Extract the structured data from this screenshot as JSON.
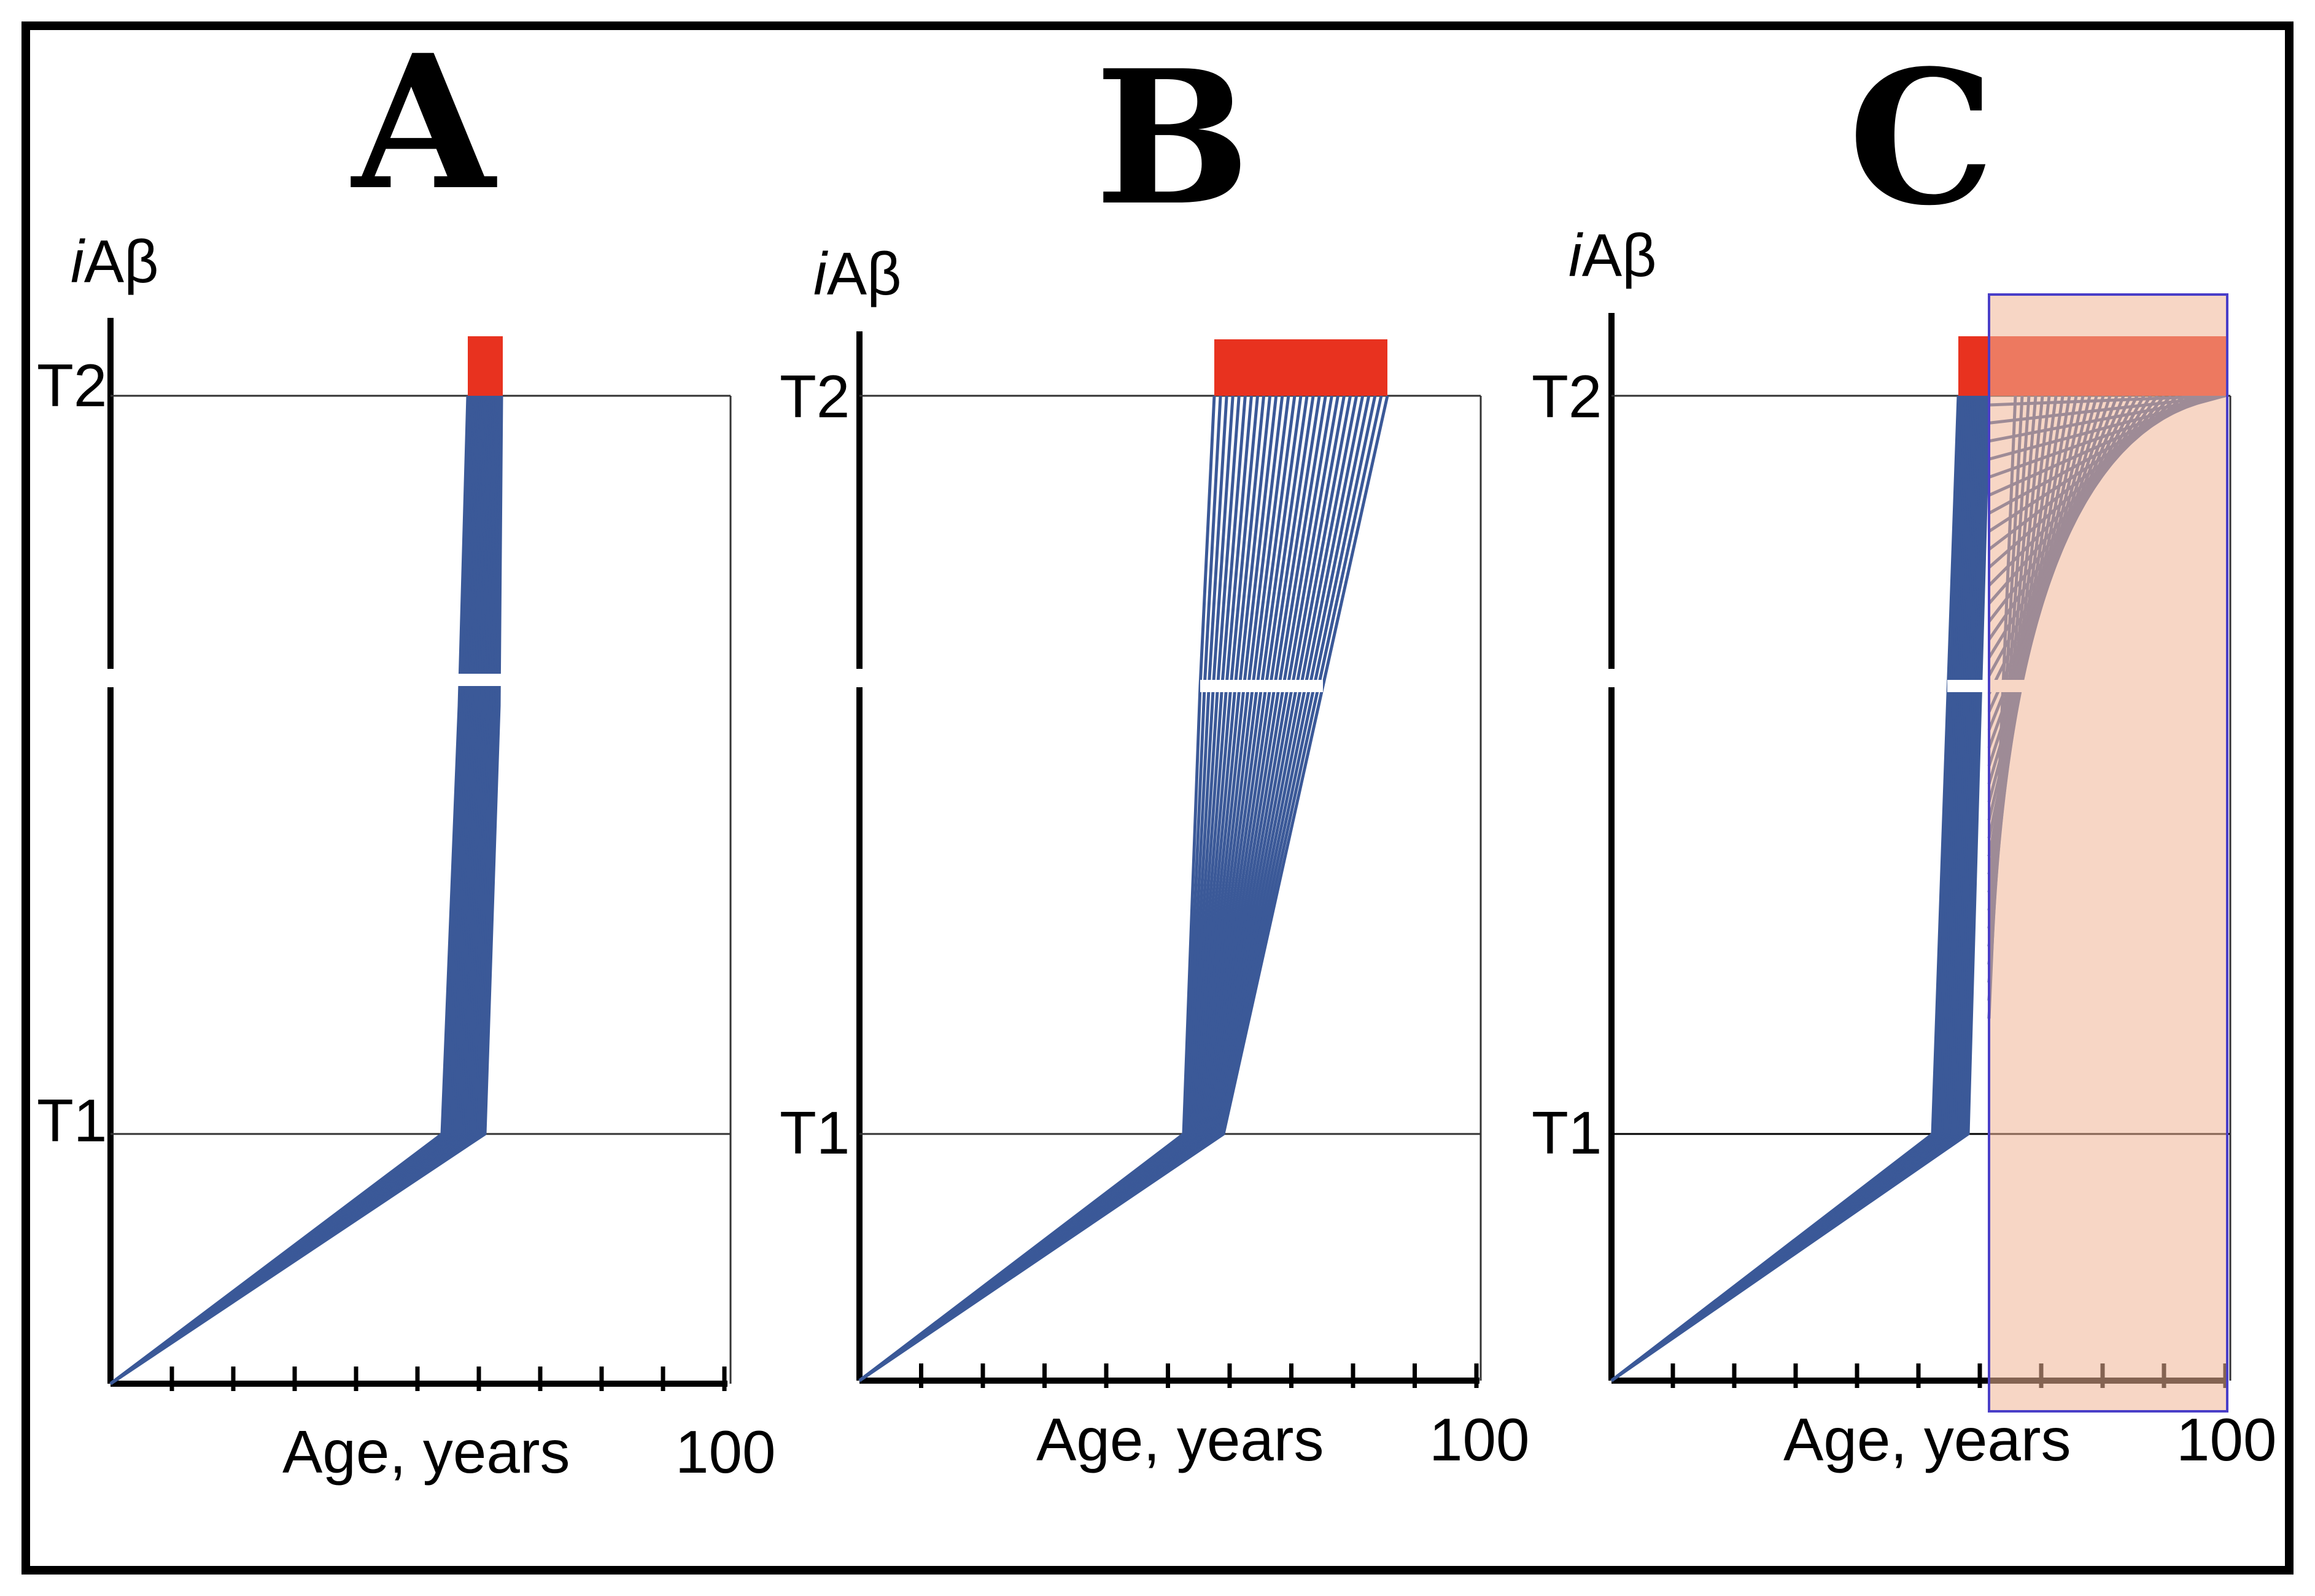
{
  "colors": {
    "frame": "#000000",
    "trajectory": "#3b5998",
    "threshold_box": "#e8321f",
    "shaded_region": "#f5d6c6",
    "shaded_border": "#4a3ec8"
  },
  "panels": [
    {
      "letter": "A",
      "y_label_italic": "i",
      "y_label_rest": "Aβ",
      "x_label": "Age, years",
      "x_max_label": "100",
      "t1_label": "T1",
      "t2_label": "T2",
      "n_ticks": 10
    },
    {
      "letter": "B",
      "y_label_italic": "i",
      "y_label_rest": "Aβ",
      "x_label": "Age, years",
      "x_max_label": "100",
      "t1_label": "T1",
      "t2_label": "T2",
      "n_ticks": 10
    },
    {
      "letter": "C",
      "y_label_italic": "i",
      "y_label_rest": "Aβ",
      "x_label": "Age, years",
      "x_max_label": "100",
      "t1_label": "T1",
      "t2_label": "T2",
      "n_ticks": 10
    }
  ]
}
